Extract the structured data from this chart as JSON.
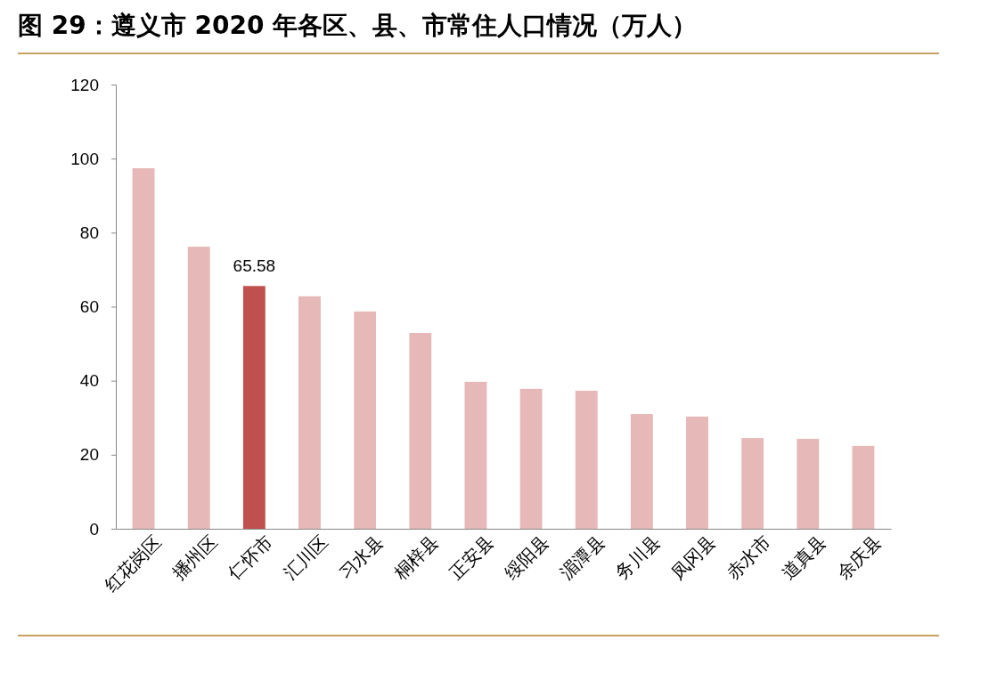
{
  "chart_data": {
    "type": "bar",
    "title": "图 29：遵义市 2020 年各区、县、市常住人口情况（万人）",
    "categories": [
      "红花岗区",
      "播州区",
      "仁怀市",
      "汇川区",
      "习水县",
      "桐梓县",
      "正安县",
      "绥阳县",
      "湄潭县",
      "务川县",
      "凤冈县",
      "赤水市",
      "道真县",
      "余庆县"
    ],
    "values": [
      97.4,
      76.2,
      65.58,
      62.8,
      58.7,
      52.9,
      39.7,
      37.8,
      37.3,
      31.0,
      30.3,
      24.5,
      24.3,
      22.4
    ],
    "colors": [
      "#e6b8b7",
      "#e6b8b7",
      "#c0504d",
      "#e6b8b7",
      "#e6b8b7",
      "#e6b8b7",
      "#e6b8b7",
      "#e6b8b7",
      "#e6b8b7",
      "#e6b8b7",
      "#e6b8b7",
      "#e6b8b7",
      "#e6b8b7",
      "#e6b8b7"
    ],
    "value_labels": [
      null,
      null,
      "65.58",
      null,
      null,
      null,
      null,
      null,
      null,
      null,
      null,
      null,
      null,
      null
    ],
    "ylim": [
      0,
      120
    ],
    "yticks": [
      0,
      20,
      40,
      60,
      80,
      100,
      120
    ],
    "grid": false
  }
}
